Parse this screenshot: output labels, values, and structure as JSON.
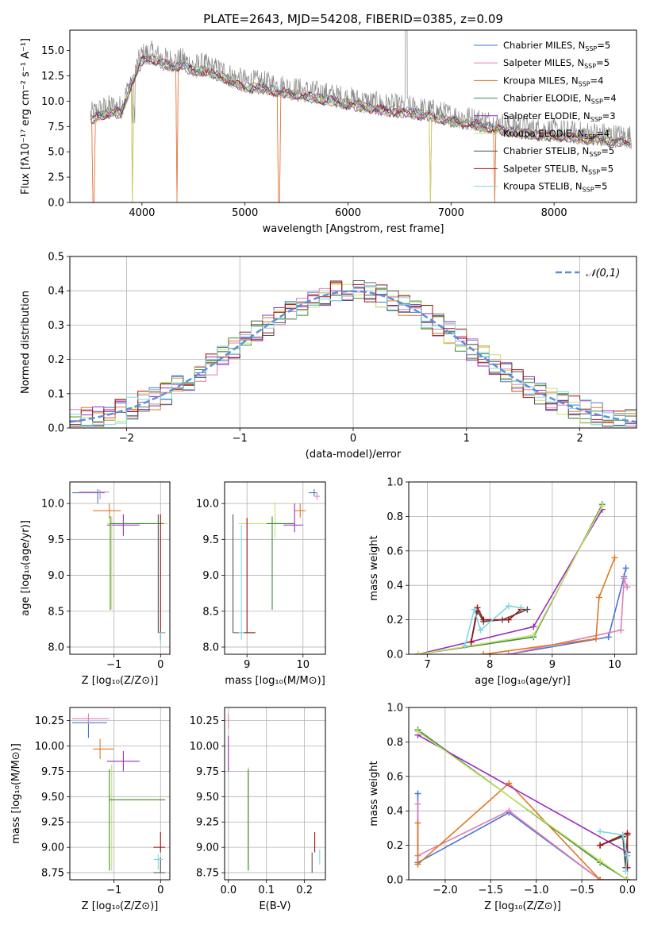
{
  "figure_title": "PLATE=2643, MJD=54208, FIBERID=0385, z=0.09",
  "colors": {
    "Chabrier MILES": "#4a74d3",
    "Salpeter MILES": "#e07fb7",
    "Kroupa MILES": "#e07820",
    "Chabrier ELODIE": "#3f8a3f",
    "Salpeter ELODIE": "#9b2cbf",
    "Kroupa ELODIE": "#c7e36a",
    "Chabrier STELIB": "#555555",
    "Salpeter STELIB": "#a01010",
    "Kroupa STELIB": "#7fd6e0",
    "gauss": "#5b8fd8",
    "grid": "#b0b0b0"
  },
  "chart_data": [
    {
      "type": "line",
      "id": "spectrum",
      "title": "PLATE=2643, MJD=54208, FIBERID=0385, z=0.09",
      "xlabel": "wavelength [Angstrom, rest frame]",
      "ylabel": "Flux [fλ10⁻¹⁷ erg cm⁻² s⁻¹ A⁻¹]",
      "xlim": [
        3300,
        8800
      ],
      "ylim": [
        0,
        17
      ],
      "xticks": [
        4000,
        5000,
        6000,
        7000,
        8000
      ],
      "yticks": [
        0.0,
        2.5,
        5.0,
        7.5,
        10.0,
        12.5,
        15.0
      ],
      "grid": false,
      "legend_position": "top-right",
      "legend": [
        "Chabrier MILES, N",
        "Salpeter MILES, N",
        "Kroupa MILES, N",
        "Chabrier ELODIE, N",
        "Salpeter ELODIE, N",
        "Kroupa ELODIE, N",
        "Chabrier STELIB, N",
        "Salpeter STELIB, N",
        "Kroupa STELIB, N"
      ],
      "legend_suffix": [
        "=5",
        "=5",
        "=4",
        "=4",
        "=3",
        "=4",
        "=5",
        "=5",
        "=5"
      ],
      "legend_sub": "SSP",
      "data_envelope": {
        "x": [
          3500,
          3600,
          3700,
          3800,
          3900,
          4000,
          4100,
          4200,
          4300,
          4400,
          4500,
          4600,
          4700,
          4800,
          4900,
          5000,
          5200,
          5400,
          5600,
          5800,
          6000,
          6200,
          6400,
          6600,
          6800,
          7000,
          7200,
          7400,
          7600,
          7800,
          8000,
          8200,
          8400,
          8600,
          8750
        ],
        "y": [
          8.7,
          9.2,
          9.5,
          9.4,
          12.3,
          14.6,
          14.8,
          14.2,
          14.0,
          14.1,
          13.5,
          13.6,
          13.2,
          12.9,
          12.3,
          12.0,
          11.8,
          11.4,
          11.0,
          10.7,
          10.3,
          9.9,
          9.6,
          9.4,
          9.1,
          8.6,
          8.3,
          7.9,
          7.5,
          7.3,
          7.1,
          6.9,
          6.8,
          6.6,
          6.5
        ]
      },
      "model_drops_at": [
        3530,
        3910,
        4340,
        5330,
        6800,
        7420
      ]
    },
    {
      "type": "line",
      "id": "residual-histogram",
      "xlabel": "(data-model)/error",
      "ylabel": "Normed distribution",
      "xlim": [
        -2.5,
        2.5
      ],
      "ylim": [
        0,
        0.5
      ],
      "xticks": [
        -2,
        -1,
        0,
        1,
        2
      ],
      "yticks": [
        0.0,
        0.1,
        0.2,
        0.3,
        0.4,
        0.5
      ],
      "grid": true,
      "legend_position": "top-right",
      "legend": [
        "𝒩(0,1)"
      ],
      "gaussian": {
        "mean": 0,
        "sigma": 1
      }
    },
    {
      "type": "scatter",
      "id": "age-vs-Z",
      "xlabel": "Z [log₁₀(Z/Z⊙)]",
      "ylabel": "age  [log₁₀(age/yr)]",
      "xlim": [
        -1.95,
        0.2
      ],
      "ylim": [
        7.9,
        10.3
      ],
      "xticks": [
        -1,
        0
      ],
      "yticks": [
        8.0,
        8.5,
        9.0,
        9.5,
        10.0
      ],
      "grid": true,
      "points": [
        {
          "model": "Chabrier MILES",
          "x": -1.35,
          "y": 10.15,
          "xerr": [
            0.55,
            0.15
          ],
          "yerr": [
            0.15,
            0.05
          ]
        },
        {
          "model": "Salpeter MILES",
          "x": -1.3,
          "y": 10.16,
          "xerr": [
            0.45,
            0.2
          ],
          "yerr": [
            0.1,
            0.03
          ]
        },
        {
          "model": "Kroupa MILES",
          "x": -1.1,
          "y": 9.9,
          "xerr": [
            0.35,
            0.25
          ],
          "yerr": [
            0.1,
            0.1
          ]
        },
        {
          "model": "Salpeter ELODIE",
          "x": -0.8,
          "y": 9.7,
          "xerr": [
            0.35,
            0.35
          ],
          "yerr": [
            0.15,
            0.15
          ]
        },
        {
          "model": "Kroupa ELODIE",
          "x": -1.05,
          "y": 9.72,
          "xerr": [
            0.1,
            1.2
          ],
          "yerr": [
            1.2,
            0.1
          ]
        },
        {
          "model": "Chabrier ELODIE",
          "x": -1.08,
          "y": 9.72,
          "xerr": [
            0.0,
            1.15
          ],
          "yerr": [
            1.2,
            0.1
          ]
        },
        {
          "model": "Salpeter STELIB",
          "x": 0.0,
          "y": 8.2,
          "xerr": [
            0.05,
            0.1
          ],
          "yerr": [
            0.1,
            1.65
          ]
        },
        {
          "model": "Chabrier STELIB",
          "x": -0.05,
          "y": 8.2,
          "xerr": [
            0.0,
            0.15
          ],
          "yerr": [
            0.0,
            1.65
          ]
        },
        {
          "model": "Kroupa STELIB",
          "x": 0.0,
          "y": 8.2,
          "xerr": [
            0.05,
            0.1
          ],
          "yerr": [
            0.15,
            0.0
          ]
        }
      ]
    },
    {
      "type": "scatter",
      "id": "age-vs-mass",
      "xlabel": "mass [log₁₀(M/M⊙)]",
      "ylabel": "",
      "xlim": [
        8.6,
        10.4
      ],
      "ylim": [
        7.9,
        10.3
      ],
      "xticks": [
        9,
        10
      ],
      "yticks": [
        8.0,
        8.5,
        9.0,
        9.5,
        10.0
      ],
      "grid": true,
      "points": [
        {
          "model": "Chabrier MILES",
          "x": 10.2,
          "y": 10.15,
          "xerr": [
            0.1,
            0.05
          ],
          "yerr": [
            0.05,
            0.05
          ]
        },
        {
          "model": "Salpeter MILES",
          "x": 10.25,
          "y": 10.1,
          "xerr": [
            0.05,
            0.05
          ],
          "yerr": [
            0.05,
            0.05
          ]
        },
        {
          "model": "Kroupa MILES",
          "x": 9.95,
          "y": 9.9,
          "xerr": [
            0.1,
            0.1
          ],
          "yerr": [
            0.1,
            0.1
          ]
        },
        {
          "model": "Salpeter ELODIE",
          "x": 9.85,
          "y": 9.7,
          "xerr": [
            0.2,
            0.15
          ],
          "yerr": [
            0.1,
            0.3
          ]
        },
        {
          "model": "Kroupa ELODIE",
          "x": 9.5,
          "y": 9.72,
          "xerr": [
            0.65,
            0.35
          ],
          "yerr": [
            0.2,
            0.3
          ]
        },
        {
          "model": "Chabrier ELODIE",
          "x": 9.45,
          "y": 9.72,
          "xerr": [
            0.1,
            0.4
          ],
          "yerr": [
            1.2,
            0.1
          ]
        },
        {
          "model": "Salpeter STELIB",
          "x": 9.0,
          "y": 8.2,
          "xerr": [
            0.05,
            0.15
          ],
          "yerr": [
            0.0,
            1.6
          ]
        },
        {
          "model": "Chabrier STELIB",
          "x": 8.75,
          "y": 8.2,
          "xerr": [
            0.0,
            0.25
          ],
          "yerr": [
            0.0,
            1.65
          ]
        },
        {
          "model": "Kroupa STELIB",
          "x": 8.9,
          "y": 8.2,
          "xerr": [
            0.05,
            0.05
          ],
          "yerr": [
            0.1,
            1.5
          ]
        }
      ]
    },
    {
      "type": "line",
      "id": "mass-weight-vs-age",
      "xlabel": "age  [log₁₀(age/yr)]",
      "ylabel": "mass weight",
      "xlim": [
        6.7,
        10.35
      ],
      "ylim": [
        0,
        1.0
      ],
      "xticks": [
        7,
        8,
        9,
        10
      ],
      "yticks": [
        0.0,
        0.2,
        0.4,
        0.6,
        0.8,
        1.0
      ],
      "grid": true,
      "series": [
        {
          "model": "Chabrier MILES",
          "x": [
            8.3,
            9.9,
            10.15,
            10.18
          ],
          "y": [
            0.0,
            0.1,
            0.45,
            0.5
          ]
        },
        {
          "model": "Salpeter MILES",
          "x": [
            8.3,
            10.1,
            10.15,
            10.2
          ],
          "y": [
            0.0,
            0.14,
            0.44,
            0.39
          ]
        },
        {
          "model": "Kroupa MILES",
          "x": [
            7.9,
            9.7,
            9.75,
            10.0
          ],
          "y": [
            0.0,
            0.09,
            0.33,
            0.56
          ]
        },
        {
          "model": "Chabrier ELODIE",
          "x": [
            6.85,
            8.7,
            9.8
          ],
          "y": [
            0.0,
            0.1,
            0.87
          ]
        },
        {
          "model": "Salpeter ELODIE",
          "x": [
            6.85,
            8.7,
            9.8
          ],
          "y": [
            0.0,
            0.16,
            0.84
          ]
        },
        {
          "model": "Kroupa ELODIE",
          "x": [
            6.85,
            8.7,
            9.8
          ],
          "y": [
            0.0,
            0.11,
            0.86
          ]
        },
        {
          "model": "Chabrier STELIB",
          "x": [
            7.7,
            7.8,
            7.9,
            8.2,
            8.6
          ],
          "y": [
            0.07,
            0.25,
            0.19,
            0.2,
            0.26
          ]
        },
        {
          "model": "Salpeter STELIB",
          "x": [
            7.7,
            7.8,
            7.9,
            8.3,
            8.5
          ],
          "y": [
            0.07,
            0.27,
            0.2,
            0.2,
            0.26
          ]
        },
        {
          "model": "Kroupa STELIB",
          "x": [
            7.6,
            7.75,
            7.85,
            8.3,
            8.5
          ],
          "y": [
            0.05,
            0.26,
            0.14,
            0.28,
            0.27
          ]
        }
      ]
    },
    {
      "type": "scatter",
      "id": "mass-vs-Z",
      "xlabel": "Z [log₁₀(Z/Z⊙)]",
      "ylabel": "mass [log₁₀(M/M⊙)]",
      "xlim": [
        -1.95,
        0.2
      ],
      "ylim": [
        8.68,
        10.38
      ],
      "xticks": [
        -1,
        0
      ],
      "yticks": [
        8.75,
        9.0,
        9.25,
        9.5,
        9.75,
        10.0,
        10.25
      ],
      "grid": true,
      "points": [
        {
          "model": "Chabrier MILES",
          "x": -1.55,
          "y": 10.23,
          "xerr": [
            0.35,
            0.4
          ],
          "yerr": [
            0.15,
            0.03
          ]
        },
        {
          "model": "Salpeter MILES",
          "x": -1.55,
          "y": 10.27,
          "xerr": [
            0.35,
            0.45
          ],
          "yerr": [
            0.05,
            0.05
          ]
        },
        {
          "model": "Kroupa MILES",
          "x": -1.3,
          "y": 9.97,
          "xerr": [
            0.15,
            0.3
          ],
          "yerr": [
            0.1,
            0.1
          ]
        },
        {
          "model": "Salpeter ELODIE",
          "x": -0.8,
          "y": 9.85,
          "xerr": [
            0.35,
            0.35
          ],
          "yerr": [
            0.1,
            0.1
          ]
        },
        {
          "model": "Kroupa ELODIE",
          "x": -1.05,
          "y": 9.47,
          "xerr": [
            0.05,
            1.15
          ],
          "yerr": [
            0.7,
            0.35
          ]
        },
        {
          "model": "Chabrier ELODIE",
          "x": -1.1,
          "y": 9.47,
          "xerr": [
            0.0,
            1.2
          ],
          "yerr": [
            0.7,
            0.3
          ]
        },
        {
          "model": "Salpeter STELIB",
          "x": 0.0,
          "y": 9.0,
          "xerr": [
            0.15,
            0.1
          ],
          "yerr": [
            0.05,
            0.15
          ]
        },
        {
          "model": "Chabrier STELIB",
          "x": 0.0,
          "y": 8.75,
          "xerr": [
            0.15,
            0.1
          ],
          "yerr": [
            0.0,
            0.15
          ]
        },
        {
          "model": "Kroupa STELIB",
          "x": -0.05,
          "y": 8.88,
          "xerr": [
            0.1,
            0.1
          ],
          "yerr": [
            0.1,
            0.05
          ]
        }
      ]
    },
    {
      "type": "scatter",
      "id": "mass-vs-ebv",
      "xlabel": "E(B-V)",
      "ylabel": "",
      "xlim": [
        -0.01,
        0.255
      ],
      "ylim": [
        8.68,
        10.38
      ],
      "xticks": [
        0.0,
        0.1,
        0.2
      ],
      "yticks": [
        8.75,
        9.0,
        9.25,
        9.5,
        9.75,
        10.0,
        10.25
      ],
      "grid": true,
      "points": [
        {
          "model": "Salpeter MILES",
          "x": 0.0,
          "y": 10.27,
          "xerr": [
            0,
            0
          ],
          "yerr": [
            0.1,
            0.05
          ]
        },
        {
          "model": "Salpeter ELODIE",
          "x": 0.0,
          "y": 9.85,
          "xerr": [
            0,
            0
          ],
          "yerr": [
            0.1,
            0.25
          ]
        },
        {
          "model": "Kroupa ELODIE",
          "x": 0.053,
          "y": 9.47,
          "xerr": [
            0,
            0
          ],
          "yerr": [
            0.7,
            0.32
          ]
        },
        {
          "model": "Chabrier ELODIE",
          "x": 0.052,
          "y": 9.47,
          "xerr": [
            0,
            0
          ],
          "yerr": [
            0.7,
            0.3
          ]
        },
        {
          "model": "Salpeter STELIB",
          "x": 0.227,
          "y": 9.0,
          "xerr": [
            0,
            0
          ],
          "yerr": [
            0.05,
            0.15
          ]
        },
        {
          "model": "Chabrier STELIB",
          "x": 0.22,
          "y": 8.85,
          "xerr": [
            0,
            0
          ],
          "yerr": [
            0.1,
            0.1
          ]
        },
        {
          "model": "Kroupa STELIB",
          "x": 0.24,
          "y": 8.88,
          "xerr": [
            0,
            0
          ],
          "yerr": [
            0.05,
            0.1
          ]
        }
      ]
    },
    {
      "type": "line",
      "id": "mass-weight-vs-Z",
      "xlabel": "Z [log₁₀(Z/Z⊙)]",
      "ylabel": "mass weight",
      "xlim": [
        -2.4,
        0.1
      ],
      "ylim": [
        0,
        1.0
      ],
      "xticks": [
        -2.0,
        -1.5,
        -1.0,
        -0.5,
        0.0
      ],
      "yticks": [
        0.0,
        0.2,
        0.4,
        0.6,
        0.8,
        1.0
      ],
      "grid": true,
      "series": [
        {
          "model": "Chabrier MILES",
          "x": [
            -2.3,
            -2.3,
            -1.3,
            -0.3,
            -0.01
          ],
          "y": [
            0.5,
            0.1,
            0.39,
            0.0,
            0.0
          ]
        },
        {
          "model": "Salpeter MILES",
          "x": [
            -2.3,
            -2.3,
            -1.3,
            -0.3,
            -0.01
          ],
          "y": [
            0.44,
            0.14,
            0.4,
            0.0,
            0.0
          ]
        },
        {
          "model": "Kroupa MILES",
          "x": [
            -2.3,
            -2.3,
            -1.3,
            -0.3
          ],
          "y": [
            0.33,
            0.09,
            0.56,
            0.0
          ]
        },
        {
          "model": "Chabrier ELODIE",
          "x": [
            -2.3,
            -0.3,
            0.0
          ],
          "y": [
            0.87,
            0.1,
            0.0
          ]
        },
        {
          "model": "Salpeter ELODIE",
          "x": [
            -2.3,
            0.0
          ],
          "y": [
            0.84,
            0.16
          ]
        },
        {
          "model": "Kroupa ELODIE",
          "x": [
            -2.3,
            -0.3,
            0.0
          ],
          "y": [
            0.86,
            0.11,
            0.0
          ]
        },
        {
          "model": "Chabrier STELIB",
          "x": [
            -0.3,
            -0.05,
            -0.02,
            0.0
          ],
          "y": [
            0.2,
            0.25,
            0.07,
            0.26
          ]
        },
        {
          "model": "Salpeter STELIB",
          "x": [
            -0.3,
            -0.05,
            0.0,
            0.0
          ],
          "y": [
            0.2,
            0.26,
            0.27,
            0.07
          ]
        },
        {
          "model": "Kroupa STELIB",
          "x": [
            -0.3,
            -0.05,
            0.0,
            -0.02
          ],
          "y": [
            0.28,
            0.26,
            0.14,
            0.05
          ]
        }
      ]
    }
  ]
}
